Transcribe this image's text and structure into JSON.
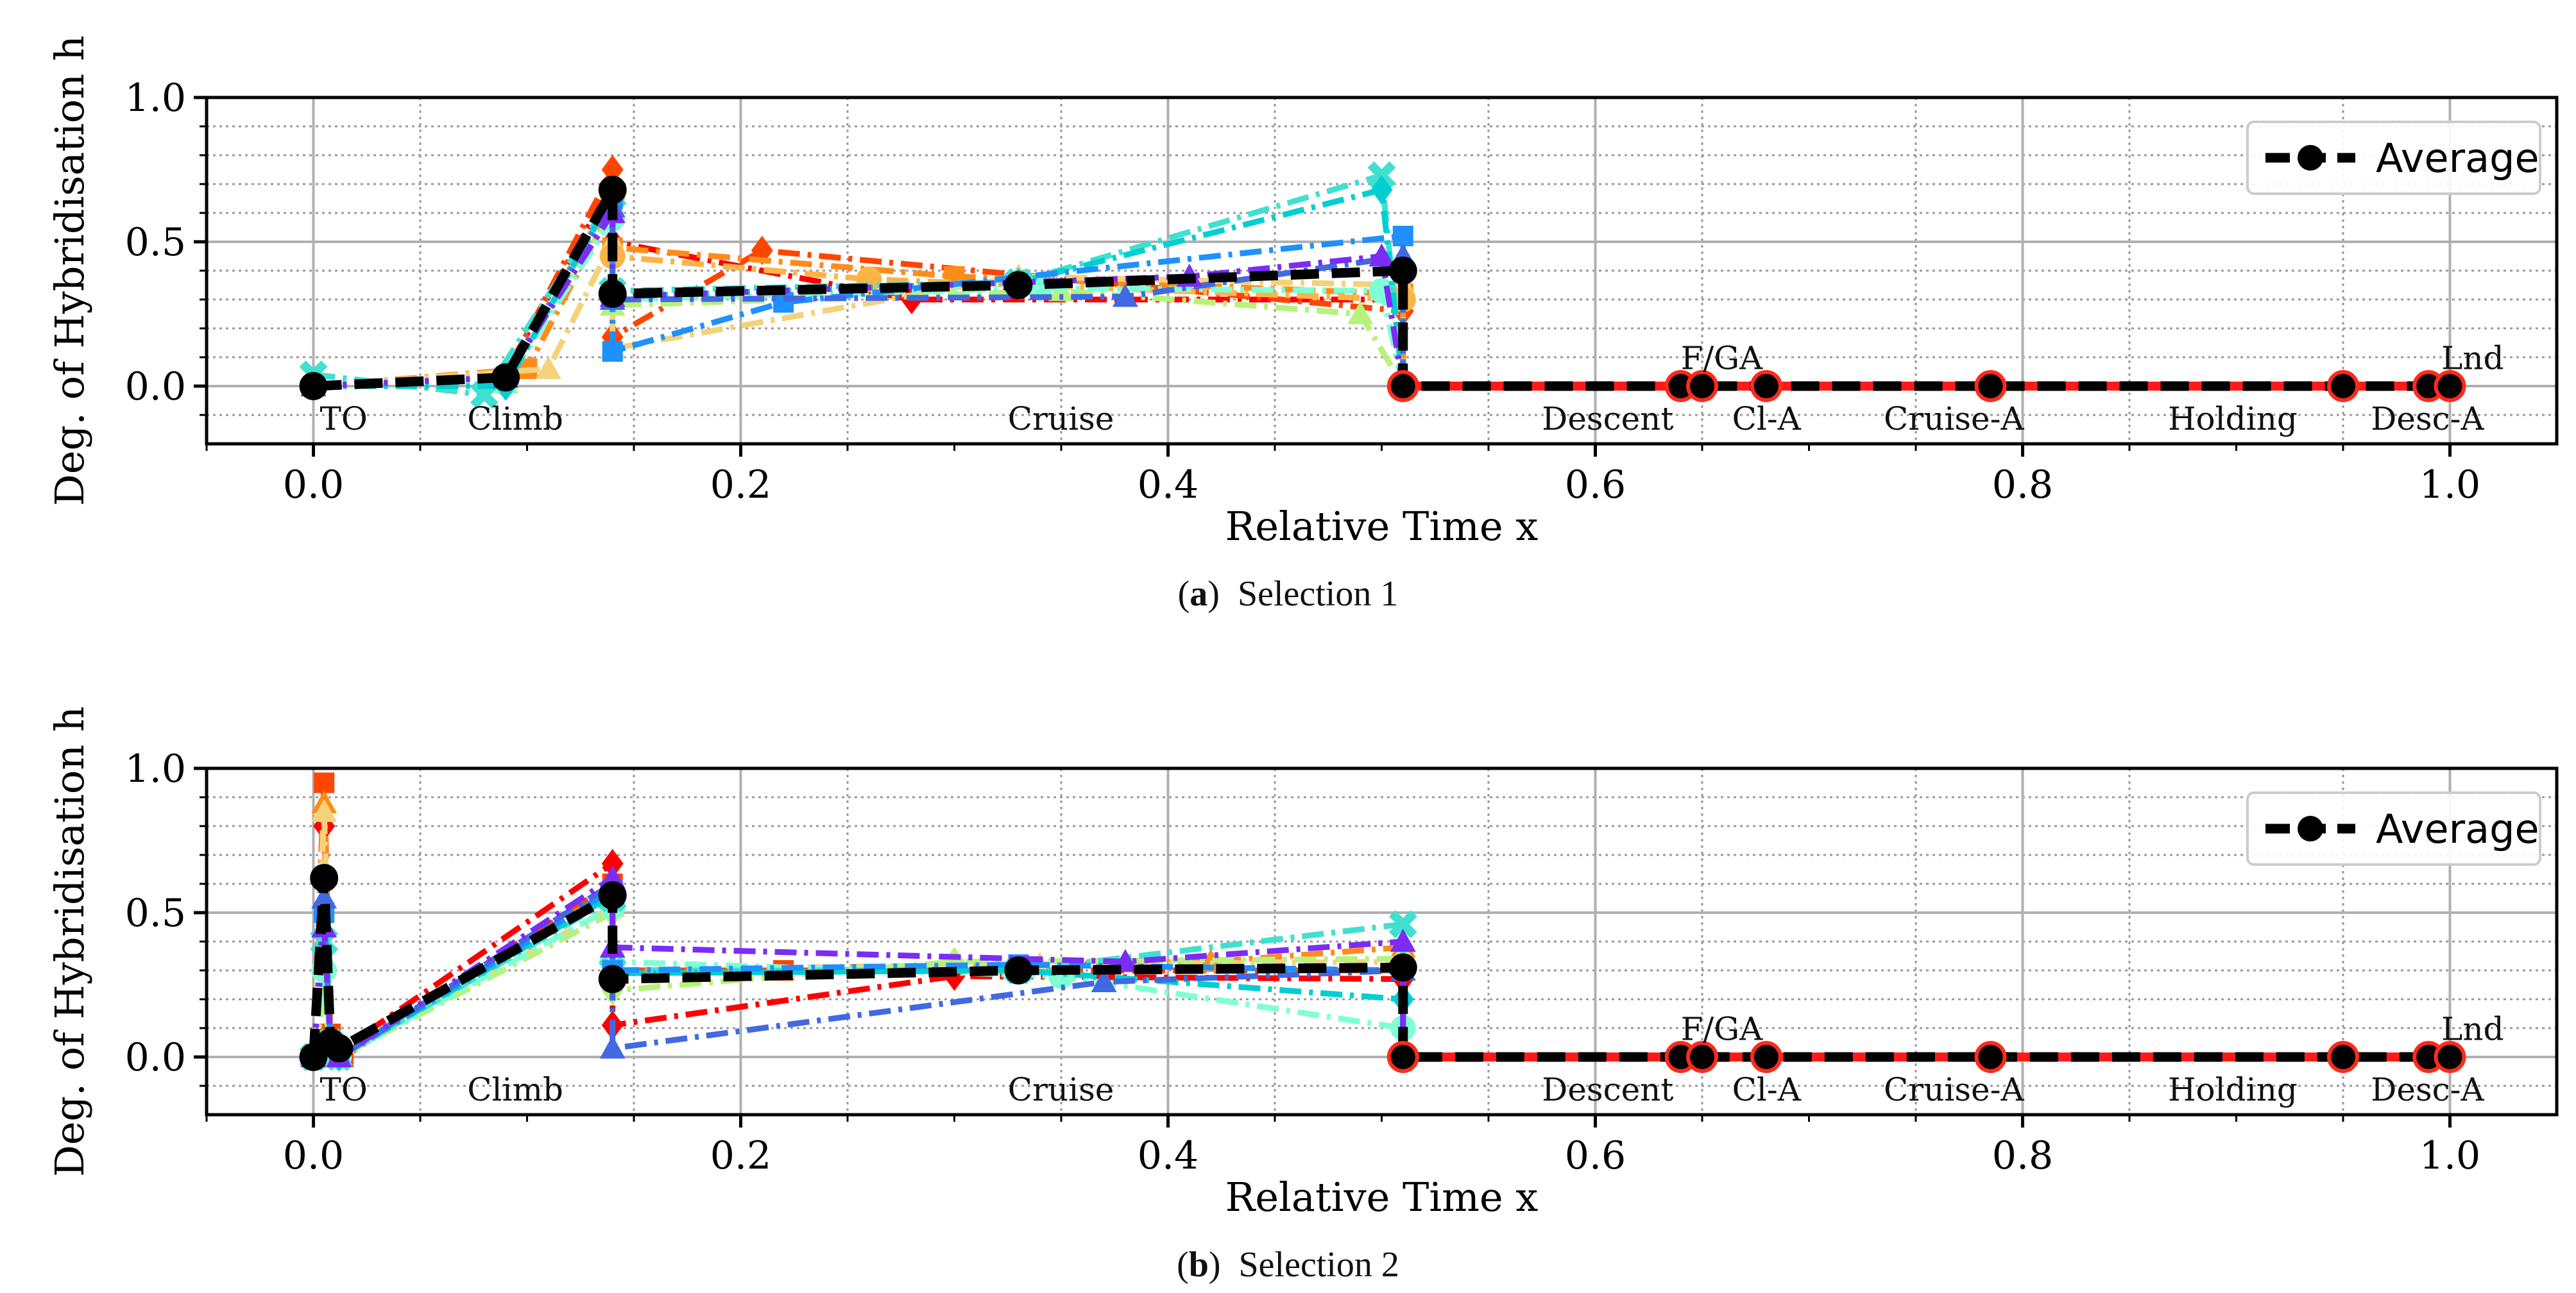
{
  "figure": {
    "captions": [
      {
        "label": "a",
        "text": "Selection 1"
      },
      {
        "label": "b",
        "text": "Selection 2"
      }
    ]
  },
  "chart_data": [
    {
      "type": "line",
      "xlabel": "Relative Time x",
      "ylabel": "Deg. of Hybridisation h",
      "xlim": [
        -0.05,
        1.05
      ],
      "ylim": [
        -0.2,
        1.0
      ],
      "xticks": [
        "0.0",
        "0.2",
        "0.4",
        "0.6",
        "0.8",
        "1.0"
      ],
      "yticks": [
        "0.0",
        "0.5",
        "1.0"
      ],
      "grid": true,
      "legend": {
        "position": "top-right",
        "entries": [
          "Average"
        ]
      },
      "phase_labels": [
        {
          "text": "TO",
          "x": 0.003,
          "y": -0.12
        },
        {
          "text": "Climb",
          "x": 0.072,
          "y": -0.12
        },
        {
          "text": "Cruise",
          "x": 0.325,
          "y": -0.12
        },
        {
          "text": "Descent",
          "x": 0.575,
          "y": -0.12
        },
        {
          "text": "F/GA",
          "x": 0.64,
          "y": 0.09
        },
        {
          "text": "Cl-A",
          "x": 0.664,
          "y": -0.12
        },
        {
          "text": "Cruise-A",
          "x": 0.735,
          "y": -0.12
        },
        {
          "text": "Holding",
          "x": 0.868,
          "y": -0.12
        },
        {
          "text": "Desc-A",
          "x": 0.963,
          "y": -0.12
        },
        {
          "text": "Lnd",
          "x": 0.996,
          "y": 0.09
        }
      ],
      "average": {
        "name": "Average",
        "x": [
          0.0,
          0.09,
          0.14,
          0.14,
          0.33,
          0.51,
          0.51,
          0.64,
          0.65,
          0.68,
          0.785,
          0.95,
          0.99,
          1.0
        ],
        "y": [
          0.0,
          0.03,
          0.68,
          0.32,
          0.35,
          0.4,
          0.0,
          0.0,
          0.0,
          0.0,
          0.0,
          0.0,
          0.0,
          0.0
        ]
      },
      "series": [
        {
          "color": "#ff0000",
          "marker": "diamond",
          "x": [
            0.0,
            0.09,
            0.14,
            0.14,
            0.28,
            0.51,
            0.51
          ],
          "y": [
            0.0,
            0.05,
            0.7,
            0.5,
            0.3,
            0.3,
            0.0
          ]
        },
        {
          "color": "#ff4500",
          "marker": "diamond",
          "x": [
            0.0,
            0.09,
            0.14,
            0.14,
            0.21,
            0.51,
            0.51
          ],
          "y": [
            0.0,
            0.04,
            0.75,
            0.17,
            0.47,
            0.26,
            0.0
          ]
        },
        {
          "color": "#ff8c1a",
          "marker": "square",
          "x": [
            0.0,
            0.1,
            0.14,
            0.14,
            0.3,
            0.51,
            0.51
          ],
          "y": [
            0.0,
            0.06,
            0.62,
            0.48,
            0.38,
            0.32,
            0.0
          ]
        },
        {
          "color": "#f4d27a",
          "marker": "triangle",
          "x": [
            0.0,
            0.11,
            0.14,
            0.14,
            0.33,
            0.51,
            0.51
          ],
          "y": [
            0.0,
            0.06,
            0.5,
            0.13,
            0.38,
            0.35,
            0.0
          ]
        },
        {
          "color": "#ffb347",
          "marker": "circle",
          "x": [
            0.0,
            0.09,
            0.14,
            0.14,
            0.26,
            0.51,
            0.51
          ],
          "y": [
            0.0,
            0.03,
            0.66,
            0.45,
            0.37,
            0.3,
            0.0
          ]
        },
        {
          "color": "#b7f27a",
          "marker": "triangle",
          "x": [
            0.0,
            0.09,
            0.14,
            0.14,
            0.35,
            0.49,
            0.51
          ],
          "y": [
            0.0,
            0.01,
            0.6,
            0.28,
            0.33,
            0.25,
            0.0
          ]
        },
        {
          "color": "#7fffd4",
          "marker": "circle",
          "x": [
            0.0,
            0.09,
            0.14,
            0.14,
            0.34,
            0.5,
            0.51
          ],
          "y": [
            0.0,
            0.01,
            0.58,
            0.3,
            0.34,
            0.33,
            0.0
          ]
        },
        {
          "color": "#40e0d0",
          "marker": "x",
          "x": [
            0.0,
            0.08,
            0.14,
            0.14,
            0.33,
            0.5,
            0.51
          ],
          "y": [
            0.04,
            -0.03,
            0.66,
            0.33,
            0.36,
            0.73,
            0.0
          ]
        },
        {
          "color": "#00ced1",
          "marker": "diamond",
          "x": [
            0.0,
            0.09,
            0.14,
            0.14,
            0.33,
            0.5,
            0.51
          ],
          "y": [
            0.0,
            0.0,
            0.66,
            0.31,
            0.36,
            0.68,
            0.0
          ]
        },
        {
          "color": "#1e90ff",
          "marker": "square",
          "x": [
            0.0,
            0.09,
            0.14,
            0.14,
            0.22,
            0.51,
            0.51
          ],
          "y": [
            0.0,
            0.03,
            0.65,
            0.12,
            0.29,
            0.52,
            0.0
          ]
        },
        {
          "color": "#4169e1",
          "marker": "triangle",
          "x": [
            0.0,
            0.09,
            0.14,
            0.14,
            0.38,
            0.51,
            0.51
          ],
          "y": [
            0.0,
            0.03,
            0.62,
            0.3,
            0.31,
            0.45,
            0.0
          ]
        },
        {
          "color": "#7b2cf5",
          "marker": "triangle",
          "x": [
            0.0,
            0.09,
            0.14,
            0.14,
            0.41,
            0.5,
            0.51
          ],
          "y": [
            0.0,
            0.03,
            0.6,
            0.31,
            0.38,
            0.45,
            0.0
          ]
        }
      ]
    },
    {
      "type": "line",
      "xlabel": "Relative Time x",
      "ylabel": "Deg. of Hybridisation h",
      "xlim": [
        -0.05,
        1.05
      ],
      "ylim": [
        -0.2,
        1.0
      ],
      "xticks": [
        "0.0",
        "0.2",
        "0.4",
        "0.6",
        "0.8",
        "1.0"
      ],
      "yticks": [
        "0.0",
        "0.5",
        "1.0"
      ],
      "grid": true,
      "legend": {
        "position": "top-right",
        "entries": [
          "Average"
        ]
      },
      "phase_labels": [
        {
          "text": "TO",
          "x": 0.003,
          "y": -0.12
        },
        {
          "text": "Climb",
          "x": 0.072,
          "y": -0.12
        },
        {
          "text": "Cruise",
          "x": 0.325,
          "y": -0.12
        },
        {
          "text": "Descent",
          "x": 0.575,
          "y": -0.12
        },
        {
          "text": "F/GA",
          "x": 0.64,
          "y": 0.09
        },
        {
          "text": "Cl-A",
          "x": 0.664,
          "y": -0.12
        },
        {
          "text": "Cruise-A",
          "x": 0.735,
          "y": -0.12
        },
        {
          "text": "Holding",
          "x": 0.868,
          "y": -0.12
        },
        {
          "text": "Desc-A",
          "x": 0.963,
          "y": -0.12
        },
        {
          "text": "Lnd",
          "x": 0.996,
          "y": 0.09
        }
      ],
      "average": {
        "name": "Average",
        "x": [
          0.0,
          0.005,
          0.008,
          0.012,
          0.14,
          0.14,
          0.33,
          0.51,
          0.51,
          0.64,
          0.65,
          0.68,
          0.785,
          0.95,
          0.99,
          1.0
        ],
        "y": [
          0.0,
          0.62,
          0.05,
          0.03,
          0.56,
          0.27,
          0.3,
          0.31,
          0.0,
          0.0,
          0.0,
          0.0,
          0.0,
          0.0,
          0.0,
          0.0
        ]
      },
      "series": [
        {
          "color": "#ff0000",
          "marker": "diamond",
          "x": [
            0.0,
            0.005,
            0.008,
            0.012,
            0.14,
            0.14,
            0.3,
            0.51,
            0.51
          ],
          "y": [
            0.0,
            0.8,
            0.06,
            0.02,
            0.67,
            0.11,
            0.28,
            0.27,
            0.0
          ]
        },
        {
          "color": "#ff4500",
          "marker": "square",
          "x": [
            0.0,
            0.005,
            0.008,
            0.014,
            0.14,
            0.14,
            0.22,
            0.51,
            0.51
          ],
          "y": [
            0.0,
            0.95,
            0.08,
            0.0,
            0.6,
            0.3,
            0.3,
            0.3,
            0.0
          ]
        },
        {
          "color": "#ff8c1a",
          "marker": "triangle",
          "x": [
            0.0,
            0.005,
            0.008,
            0.012,
            0.14,
            0.14,
            0.42,
            0.51,
            0.51
          ],
          "y": [
            0.0,
            0.88,
            0.05,
            0.0,
            0.58,
            0.3,
            0.33,
            0.38,
            0.0
          ]
        },
        {
          "color": "#f4d27a",
          "marker": "triangle",
          "x": [
            0.0,
            0.005,
            0.008,
            0.012,
            0.14,
            0.14,
            0.34,
            0.51,
            0.51
          ],
          "y": [
            0.0,
            0.85,
            0.04,
            0.0,
            0.52,
            0.3,
            0.32,
            0.33,
            0.0
          ]
        },
        {
          "color": "#b7f27a",
          "marker": "diamond",
          "x": [
            0.0,
            0.005,
            0.008,
            0.012,
            0.14,
            0.14,
            0.3,
            0.51,
            0.51
          ],
          "y": [
            0.0,
            0.2,
            0.03,
            0.0,
            0.5,
            0.23,
            0.33,
            0.34,
            0.0
          ]
        },
        {
          "color": "#7fffd4",
          "marker": "circle",
          "x": [
            0.0,
            0.005,
            0.008,
            0.012,
            0.14,
            0.14,
            0.35,
            0.51,
            0.51
          ],
          "y": [
            0.0,
            0.3,
            0.04,
            0.0,
            0.52,
            0.33,
            0.28,
            0.1,
            0.0
          ]
        },
        {
          "color": "#40e0d0",
          "marker": "x",
          "x": [
            0.0,
            0.005,
            0.008,
            0.012,
            0.14,
            0.14,
            0.33,
            0.51,
            0.51
          ],
          "y": [
            0.0,
            0.4,
            0.05,
            0.0,
            0.55,
            0.3,
            0.3,
            0.46,
            0.0
          ]
        },
        {
          "color": "#00ced1",
          "marker": "diamond",
          "x": [
            0.0,
            0.005,
            0.008,
            0.012,
            0.14,
            0.14,
            0.33,
            0.51,
            0.51
          ],
          "y": [
            0.0,
            0.5,
            0.05,
            0.0,
            0.56,
            0.29,
            0.3,
            0.2,
            0.0
          ]
        },
        {
          "color": "#1e90ff",
          "marker": "square",
          "x": [
            0.0,
            0.005,
            0.008,
            0.012,
            0.14,
            0.14,
            0.33,
            0.51,
            0.51
          ],
          "y": [
            0.0,
            0.5,
            0.05,
            0.0,
            0.58,
            0.3,
            0.32,
            0.3,
            0.0
          ]
        },
        {
          "color": "#4169e1",
          "marker": "triangle",
          "x": [
            0.0,
            0.005,
            0.008,
            0.012,
            0.14,
            0.14,
            0.37,
            0.51,
            0.51
          ],
          "y": [
            0.0,
            0.55,
            0.05,
            0.0,
            0.6,
            0.03,
            0.26,
            0.3,
            0.0
          ]
        },
        {
          "color": "#7b2cf5",
          "marker": "triangle",
          "x": [
            0.0,
            0.005,
            0.008,
            0.012,
            0.14,
            0.14,
            0.38,
            0.51,
            0.51
          ],
          "y": [
            0.0,
            0.45,
            0.05,
            0.0,
            0.62,
            0.38,
            0.33,
            0.4,
            0.0
          ]
        }
      ]
    }
  ]
}
